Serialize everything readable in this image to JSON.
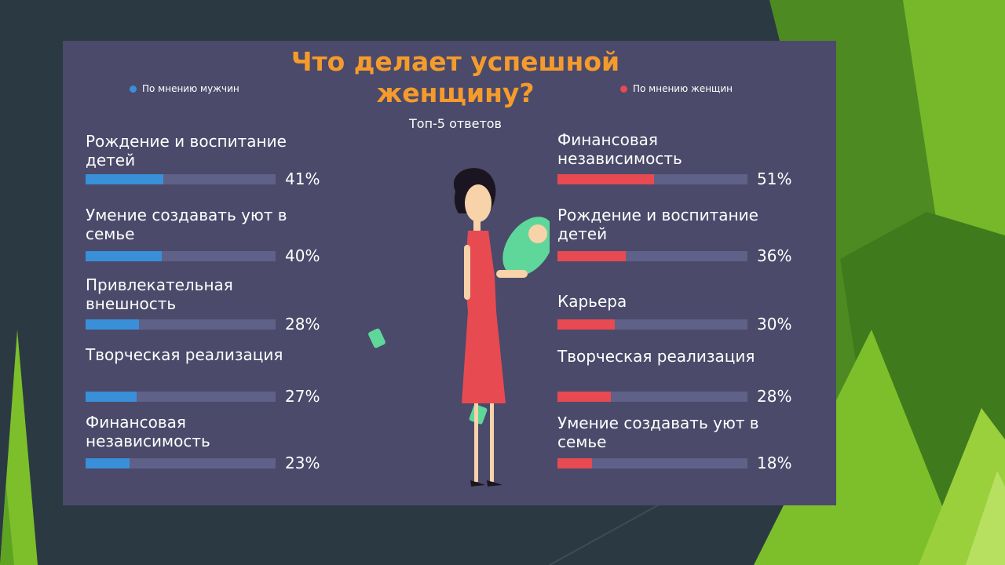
{
  "colors": {
    "background": "#2b3a42",
    "panel": "#4b4a6a",
    "title": "#f59b2c",
    "men": "#3a8fd9",
    "women": "#e84a52",
    "track": "#5f6188",
    "accent_green": "#7cbf2b"
  },
  "chart_data": {
    "type": "bar",
    "orientation": "horizontal",
    "title_line1": "Что делает успешной",
    "title_line2": "женщину?",
    "subtitle": "Топ-5 ответов",
    "xlim": [
      0,
      100
    ],
    "grid": false,
    "series": [
      {
        "name": "По мнению мужчин",
        "key": "men",
        "categories": [
          "Рождение и воспитание детей",
          "Умение создавать уют в семье",
          "Привлекательная внешность",
          "Творческая реализация",
          "Финансовая независимость"
        ],
        "values": [
          41,
          40,
          28,
          27,
          23
        ],
        "value_labels": [
          "41%",
          "40%",
          "28%",
          "27%",
          "23%"
        ]
      },
      {
        "name": "По мнению женщин",
        "key": "women",
        "categories": [
          "Финансовая независимость",
          "Рождение и воспитание детей",
          "Карьера",
          "Творческая реализация",
          "Умение создавать уют в семье"
        ],
        "values": [
          51,
          36,
          30,
          28,
          18
        ],
        "value_labels": [
          "51%",
          "36%",
          "30%",
          "28%",
          "18%"
        ]
      }
    ]
  }
}
